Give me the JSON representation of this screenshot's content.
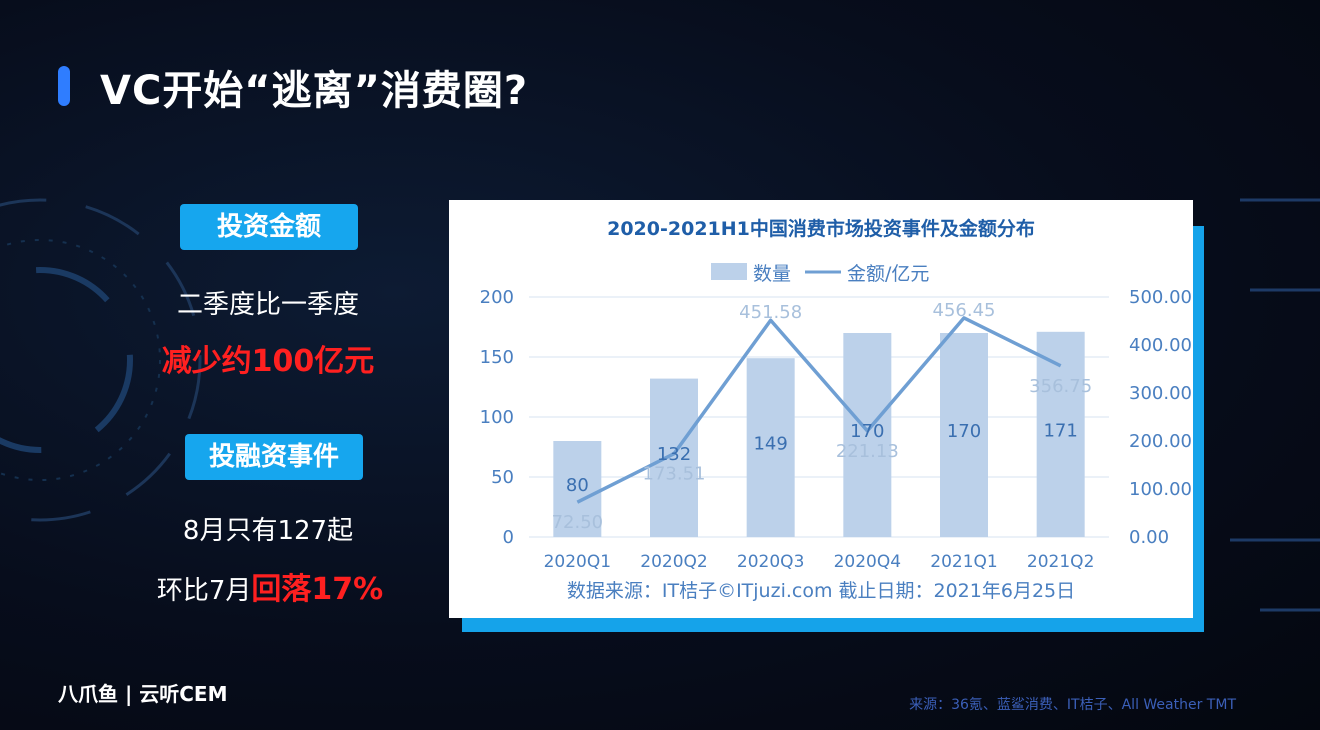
{
  "slide": {
    "title": "VC开始“逃离”消费圈?",
    "badge_amount": "投资金额",
    "amount_line1": "二季度比一季度",
    "amount_line2": "减少约100亿元",
    "badge_events": "投融资事件",
    "events_line1": "8月只有127起",
    "events_line2_prefix": "环比7月",
    "events_line2_highlight": "回落17%",
    "footer_logo": "八爪鱼 | 云听CEM",
    "footer_source": "来源：36氪、蓝鲨消费、IT桔子、All Weather TMT"
  },
  "chart_data": {
    "type": "bar",
    "title": "2020-2021H1中国消费市场投资事件及金额分布",
    "legend": [
      "数量",
      "金额/亿元"
    ],
    "categories": [
      "2020Q1",
      "2020Q2",
      "2020Q3",
      "2020Q4",
      "2021Q1",
      "2021Q2"
    ],
    "series": [
      {
        "name": "数量",
        "type": "bar",
        "axis": "left",
        "values": [
          80,
          132,
          149,
          170,
          170,
          171
        ],
        "labels": [
          "80",
          "132",
          "149",
          "170",
          "170",
          "171"
        ]
      },
      {
        "name": "金额/亿元",
        "type": "line",
        "axis": "right",
        "values": [
          72.5,
          173.51,
          451.58,
          221.13,
          456.45,
          356.75
        ],
        "labels": [
          "72.50",
          "173.51",
          "451.58",
          "221.13",
          "456.45",
          "356.75"
        ]
      }
    ],
    "y_left": {
      "range": [
        0,
        200
      ],
      "ticks": [
        "0",
        "50",
        "100",
        "150",
        "200"
      ]
    },
    "y_right": {
      "range": [
        0,
        500
      ],
      "ticks": [
        "0.00",
        "100.00",
        "200.00",
        "300.00",
        "400.00",
        "500.00"
      ]
    },
    "grid": true,
    "legend_position": "top-center",
    "source_note": "数据来源：IT桔子©ITjuzi.com   截止日期：2021年6月25日",
    "colors": {
      "bar": "#bcd1ea",
      "line": "#6f9fd3",
      "title": "#1f5ea8",
      "axis_text": "#4a7fc0"
    }
  }
}
